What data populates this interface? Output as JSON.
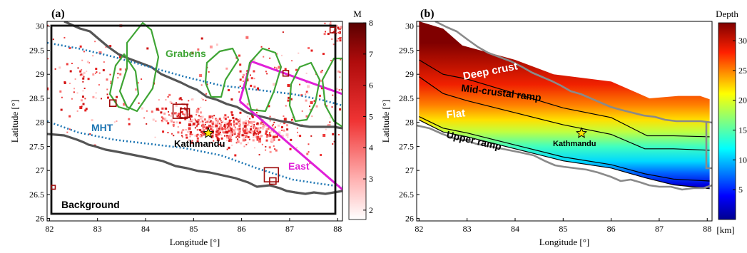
{
  "panel_a": {
    "label": "(a)",
    "xlabel": "Longitude [°]",
    "ylabel": "Latitude [°]",
    "xticks": [
      "82",
      "83",
      "84",
      "85",
      "86",
      "87",
      "88"
    ],
    "yticks": [
      "26",
      "26.5",
      "27",
      "27.5",
      "28",
      "28.5",
      "29",
      "29.5",
      "30"
    ],
    "labels": {
      "grabens": "Grabens",
      "mht": "MHT",
      "kathmandu": "Kathmandu",
      "east": "East",
      "background": "Background"
    },
    "colorbar": {
      "title": "M",
      "ticks": [
        "2",
        "3",
        "4",
        "5",
        "6",
        "7",
        "8"
      ],
      "range": [
        1.7,
        8
      ]
    },
    "colors": {
      "grabens": "#3fa535",
      "mht": "#1f77b4",
      "east": "#e020d8",
      "border": "#555555",
      "events": "#e8262b"
    }
  },
  "panel_b": {
    "label": "(b)",
    "xlabel": "Longitude [°]",
    "ylabel": "Latitude [°]",
    "xticks": [
      "82",
      "83",
      "84",
      "85",
      "86",
      "87",
      "88"
    ],
    "yticks": [
      "26",
      "26.5",
      "27",
      "27.5",
      "28",
      "28.5",
      "29",
      "29.5",
      "30"
    ],
    "labels": {
      "deep_crust": "Deep crust",
      "mid_crustal_ramp": "Mid-crustal ramp",
      "flat": "Flat",
      "upper_ramp": "Upper ramp",
      "kathmandu": "Kathmandu"
    },
    "colorbar": {
      "title": "Depth",
      "unit": "[km]",
      "ticks": [
        "5",
        "10",
        "15",
        "20",
        "25",
        "30"
      ],
      "range": [
        0,
        33
      ]
    }
  },
  "chart_data": [
    {
      "type": "scatter",
      "xlim": [
        81.95,
        88.1
      ],
      "ylim": [
        25.95,
        30.1
      ],
      "kathmandu": [
        85.32,
        27.72
      ],
      "clusters": [
        {
          "cx": 85.7,
          "cy": 27.85,
          "sx": 0.45,
          "sy": 0.15,
          "n": 380
        },
        {
          "cx": 84.7,
          "cy": 28.15,
          "sx": 0.35,
          "sy": 0.22,
          "n": 120
        },
        {
          "cx": 86.6,
          "cy": 27.7,
          "sx": 0.35,
          "sy": 0.2,
          "n": 80
        },
        {
          "cx": 82.8,
          "cy": 28.9,
          "sx": 0.6,
          "sy": 0.5,
          "n": 110
        },
        {
          "cx": 87.7,
          "cy": 28.3,
          "sx": 0.5,
          "sy": 0.6,
          "n": 90
        },
        {
          "cx": 87.95,
          "cy": 29.9,
          "sx": 0.12,
          "sy": 0.2,
          "n": 40
        },
        {
          "cx": 86.2,
          "cy": 29.1,
          "sx": 0.5,
          "sy": 0.4,
          "n": 60
        }
      ],
      "large_events": [
        {
          "x": 84.72,
          "y": 28.23,
          "m": 7.8
        },
        {
          "x": 84.82,
          "y": 28.19,
          "m": 6.6
        },
        {
          "x": 86.62,
          "y": 26.91,
          "m": 7.8
        },
        {
          "x": 86.65,
          "y": 26.78,
          "m": 6.0
        },
        {
          "x": 83.32,
          "y": 28.4,
          "m": 6.0
        },
        {
          "x": 86.92,
          "y": 29.02,
          "m": 5.8
        },
        {
          "x": 87.9,
          "y": 29.92,
          "m": 5.8
        },
        {
          "x": 82.08,
          "y": 26.65,
          "m": 5.4
        }
      ]
    },
    {
      "type": "heatmap",
      "xlim": [
        81.95,
        88.1
      ],
      "ylim": [
        25.95,
        30.1
      ],
      "upper_edge": [
        [
          82,
          30.1
        ],
        [
          82.5,
          29.95
        ],
        [
          82.9,
          29.6
        ],
        [
          84.0,
          29.3
        ],
        [
          84.8,
          29.0
        ],
        [
          86.0,
          28.85
        ],
        [
          86.8,
          28.5
        ],
        [
          87.4,
          28.55
        ],
        [
          87.85,
          28.55
        ],
        [
          88.05,
          28.48
        ]
      ],
      "lower_edge": [
        [
          82,
          28.05
        ],
        [
          82.5,
          27.8
        ],
        [
          83.0,
          27.7
        ],
        [
          84.0,
          27.45
        ],
        [
          85.0,
          27.2
        ],
        [
          86.0,
          27.05
        ],
        [
          86.7,
          26.85
        ],
        [
          87.3,
          26.7
        ],
        [
          87.8,
          26.65
        ],
        [
          88.05,
          26.62
        ]
      ],
      "contours": [
        {
          "name": "deep-crust-boundary",
          "points": [
            [
              82,
              29.3
            ],
            [
              82.5,
              29.0
            ],
            [
              83.0,
              28.9
            ],
            [
              84.0,
              28.6
            ],
            [
              85.0,
              28.3
            ],
            [
              86.0,
              28.1
            ],
            [
              86.75,
              27.72
            ],
            [
              87.3,
              27.72
            ],
            [
              88.05,
              27.7
            ]
          ]
        },
        {
          "name": "mid-ramp-boundary",
          "points": [
            [
              82,
              28.95
            ],
            [
              82.5,
              28.6
            ],
            [
              83.0,
              28.45
            ],
            [
              84.0,
              28.2
            ],
            [
              85.0,
              27.95
            ],
            [
              86.0,
              27.75
            ],
            [
              86.7,
              27.45
            ],
            [
              87.3,
              27.45
            ],
            [
              88.05,
              27.42
            ]
          ]
        },
        {
          "name": "upper-ramp-boundary",
          "points": [
            [
              82,
              28.12
            ],
            [
              82.5,
              27.88
            ],
            [
              83.0,
              27.78
            ],
            [
              84.0,
              27.53
            ],
            [
              85.0,
              27.28
            ],
            [
              86.0,
              27.12
            ],
            [
              86.7,
              26.93
            ],
            [
              87.3,
              26.82
            ],
            [
              88.05,
              26.78
            ]
          ]
        }
      ]
    }
  ]
}
